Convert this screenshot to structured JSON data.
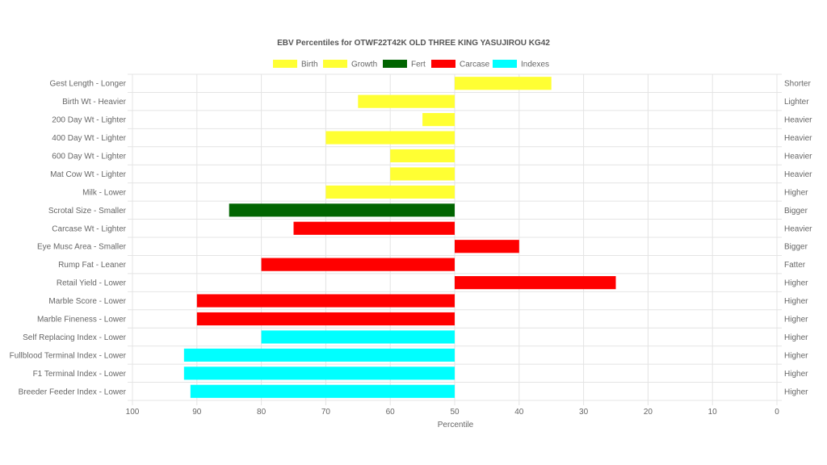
{
  "chart_data": {
    "type": "bar",
    "orientation": "horizontal",
    "title": "EBV Percentiles for OTWF22T42K OLD THREE KING YASUJIROU KG42",
    "xlabel": "Percentile",
    "x_reversed": true,
    "xlim": [
      0,
      100
    ],
    "x_ticks": [
      "100",
      "90",
      "80",
      "70",
      "60",
      "50",
      "40",
      "30",
      "20",
      "10",
      "0"
    ],
    "baseline": 50,
    "grid": true,
    "legend_position": "top",
    "legend": [
      {
        "label": "Birth",
        "color": "#ffff33"
      },
      {
        "label": "Growth",
        "color": "#ffff33"
      },
      {
        "label": "Fert",
        "color": "#006400"
      },
      {
        "label": "Carcase",
        "color": "#ff0000"
      },
      {
        "label": "Indexes",
        "color": "#00ffff"
      }
    ],
    "categories": [
      "Gest Length - Longer",
      "Birth Wt - Heavier",
      "200 Day Wt - Lighter",
      "400 Day Wt - Lighter",
      "600 Day Wt - Lighter",
      "Mat Cow Wt - Lighter",
      "Milk - Lower",
      "Scrotal Size - Smaller",
      "Carcase Wt - Lighter",
      "Eye Musc Area - Smaller",
      "Rump Fat - Leaner",
      "Retail Yield - Lower",
      "Marble Score - Lower",
      "Marble Fineness - Lower",
      "Self Replacing Index - Lower",
      "Fullblood Terminal Index - Lower",
      "F1 Terminal Index - Lower",
      "Breeder Feeder Index - Lower"
    ],
    "right_labels": [
      "Shorter",
      "Lighter",
      "Heavier",
      "Heavier",
      "Heavier",
      "Heavier",
      "Higher",
      "Bigger",
      "Heavier",
      "Bigger",
      "Fatter",
      "Higher",
      "Higher",
      "Higher",
      "Higher",
      "Higher",
      "Higher",
      "Higher"
    ],
    "values": [
      35,
      65,
      55,
      70,
      60,
      60,
      70,
      85,
      75,
      40,
      80,
      25,
      90,
      90,
      80,
      92,
      92,
      91
    ],
    "bar_colors": [
      "#ffff33",
      "#ffff33",
      "#ffff33",
      "#ffff33",
      "#ffff33",
      "#ffff33",
      "#ffff33",
      "#006400",
      "#ff0000",
      "#ff0000",
      "#ff0000",
      "#ff0000",
      "#ff0000",
      "#ff0000",
      "#00ffff",
      "#00ffff",
      "#00ffff",
      "#00ffff"
    ]
  }
}
